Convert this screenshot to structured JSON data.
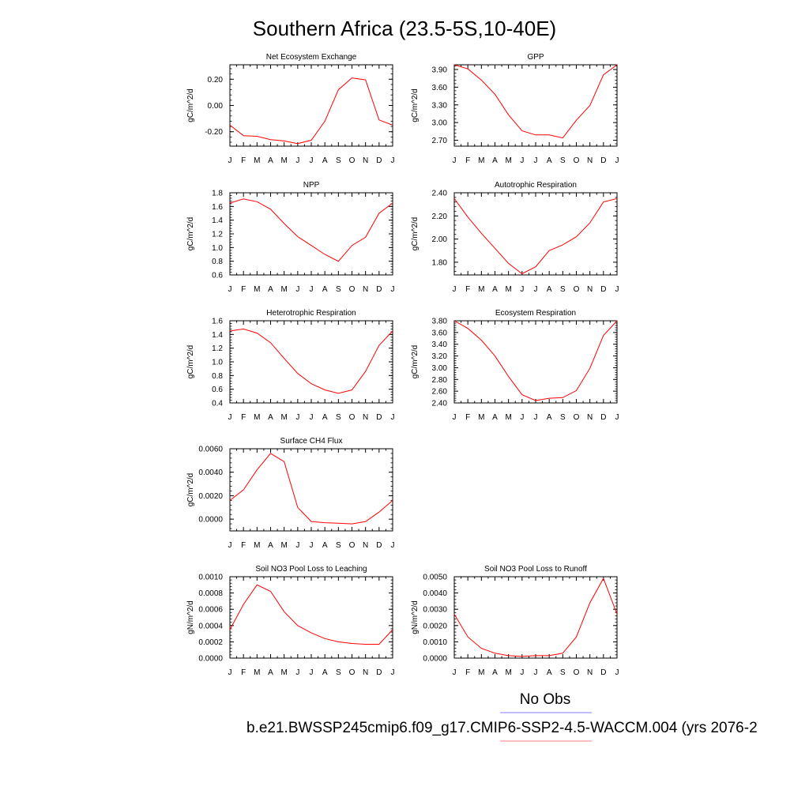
{
  "figure": {
    "title": "Southern Africa (23.5-5S,10-40E)",
    "legend": {
      "obs_label": "No Obs",
      "case_label": "b.e21.BWSSP245cmip6.f09_g17.CMIP6-SSP2-4.5-WACCM.004 (yrs 2076-2",
      "obs_color": "#7f7fff",
      "case_color": "#ff7f7f"
    },
    "line_color": "#ff0000"
  },
  "chart_data": [
    {
      "type": "line",
      "title": "Net Ecosystem Exchange",
      "ylabel": "gC/m^2/d",
      "categories": [
        "J",
        "F",
        "M",
        "A",
        "M",
        "J",
        "J",
        "A",
        "S",
        "O",
        "N",
        "D",
        "J"
      ],
      "ylim": [
        -0.31,
        0.31
      ],
      "yticks": [
        -0.2,
        0.0,
        0.2
      ],
      "ytick_labels": [
        "-0.20",
        "0.00",
        "0.20"
      ],
      "series": [
        {
          "values": [
            -0.15,
            -0.23,
            -0.235,
            -0.26,
            -0.27,
            -0.29,
            -0.265,
            -0.12,
            0.12,
            0.21,
            0.195,
            -0.11,
            -0.15
          ]
        }
      ]
    },
    {
      "type": "line",
      "title": "GPP",
      "ylabel": "gC/m^2/d",
      "categories": [
        "J",
        "F",
        "M",
        "A",
        "M",
        "J",
        "J",
        "A",
        "S",
        "O",
        "N",
        "D",
        "J"
      ],
      "ylim": [
        2.6,
        3.98
      ],
      "yticks": [
        2.7,
        3.0,
        3.3,
        3.6,
        3.9
      ],
      "ytick_labels": [
        "2.70",
        "3.00",
        "3.30",
        "3.60",
        "3.90"
      ],
      "series": [
        {
          "values": [
            3.98,
            3.91,
            3.72,
            3.48,
            3.13,
            2.86,
            2.79,
            2.79,
            2.74,
            3.04,
            3.29,
            3.81,
            3.98
          ]
        }
      ]
    },
    {
      "type": "line",
      "title": "NPP",
      "ylabel": "gC/m^2/d",
      "categories": [
        "J",
        "F",
        "M",
        "A",
        "M",
        "J",
        "J",
        "A",
        "S",
        "O",
        "N",
        "D",
        "J"
      ],
      "ylim": [
        0.6,
        1.8
      ],
      "yticks": [
        0.6,
        0.8,
        1.0,
        1.2,
        1.4,
        1.6,
        1.8
      ],
      "ytick_labels": [
        "0.6",
        "0.8",
        "1.0",
        "1.2",
        "1.4",
        "1.6",
        "1.8"
      ],
      "series": [
        {
          "values": [
            1.65,
            1.71,
            1.67,
            1.56,
            1.35,
            1.16,
            1.03,
            0.9,
            0.8,
            1.03,
            1.15,
            1.5,
            1.65
          ]
        }
      ]
    },
    {
      "type": "line",
      "title": "Autotrophic Respiration",
      "ylabel": "gC/m^2/d",
      "categories": [
        "J",
        "F",
        "M",
        "A",
        "M",
        "J",
        "J",
        "A",
        "S",
        "O",
        "N",
        "D",
        "J"
      ],
      "ylim": [
        1.69,
        2.4
      ],
      "yticks": [
        1.8,
        2.0,
        2.2,
        2.4
      ],
      "ytick_labels": [
        "1.80",
        "2.00",
        "2.20",
        "2.40"
      ],
      "series": [
        {
          "values": [
            2.35,
            2.19,
            2.05,
            1.92,
            1.79,
            1.7,
            1.76,
            1.9,
            1.95,
            2.02,
            2.14,
            2.32,
            2.35
          ]
        }
      ]
    },
    {
      "type": "line",
      "title": "Heterotrophic Respiration",
      "ylabel": "gC/m^2/d",
      "categories": [
        "J",
        "F",
        "M",
        "A",
        "M",
        "J",
        "J",
        "A",
        "S",
        "O",
        "N",
        "D",
        "J"
      ],
      "ylim": [
        0.4,
        1.6
      ],
      "yticks": [
        0.4,
        0.6,
        0.8,
        1.0,
        1.2,
        1.4,
        1.6
      ],
      "ytick_labels": [
        "0.4",
        "0.6",
        "0.8",
        "1.0",
        "1.2",
        "1.4",
        "1.6"
      ],
      "series": [
        {
          "values": [
            1.45,
            1.48,
            1.42,
            1.28,
            1.05,
            0.83,
            0.68,
            0.59,
            0.54,
            0.59,
            0.86,
            1.24,
            1.45
          ]
        }
      ]
    },
    {
      "type": "line",
      "title": "Ecosystem Respiration",
      "ylabel": "gC/m^2/d",
      "categories": [
        "J",
        "F",
        "M",
        "A",
        "M",
        "J",
        "J",
        "A",
        "S",
        "O",
        "N",
        "D",
        "J"
      ],
      "ylim": [
        2.4,
        3.8
      ],
      "yticks": [
        2.4,
        2.6,
        2.8,
        3.0,
        3.2,
        3.4,
        3.6,
        3.8
      ],
      "ytick_labels": [
        "2.40",
        "2.60",
        "2.80",
        "3.00",
        "3.20",
        "3.40",
        "3.60",
        "3.80"
      ],
      "series": [
        {
          "values": [
            3.8,
            3.67,
            3.47,
            3.2,
            2.85,
            2.54,
            2.44,
            2.48,
            2.49,
            2.61,
            2.99,
            3.55,
            3.8
          ]
        }
      ]
    },
    {
      "type": "line",
      "title": "Surface CH4 Flux",
      "ylabel": "gC/m^2/d",
      "categories": [
        "J",
        "F",
        "M",
        "A",
        "M",
        "J",
        "J",
        "A",
        "S",
        "O",
        "N",
        "D",
        "J"
      ],
      "ylim": [
        -0.001,
        0.006
      ],
      "yticks": [
        0.0,
        0.002,
        0.004,
        0.006
      ],
      "ytick_labels": [
        "0.0000",
        "0.0020",
        "0.0040",
        "0.0060"
      ],
      "series": [
        {
          "values": [
            0.0016,
            0.0025,
            0.0042,
            0.0056,
            0.0049,
            0.001,
            -0.0002,
            -0.0003,
            -0.00035,
            -0.0004,
            -0.0002,
            0.0006,
            0.0016
          ]
        }
      ]
    },
    {
      "type": "line",
      "title": "Soil NO3 Pool Loss to Leaching",
      "ylabel": "gN/m^2/d",
      "categories": [
        "J",
        "F",
        "M",
        "A",
        "M",
        "J",
        "J",
        "A",
        "S",
        "O",
        "N",
        "D",
        "J"
      ],
      "ylim": [
        0.0,
        0.001
      ],
      "yticks": [
        0.0,
        0.0002,
        0.0004,
        0.0006,
        0.0008,
        0.001
      ],
      "ytick_labels": [
        "0.0000",
        "0.0002",
        "0.0004",
        "0.0006",
        "0.0008",
        "0.0010"
      ],
      "series": [
        {
          "values": [
            0.00035,
            0.00066,
            0.0009,
            0.00082,
            0.00057,
            0.0004,
            0.00031,
            0.00024,
            0.0002,
            0.00018,
            0.00017,
            0.00017,
            0.00035
          ]
        }
      ]
    },
    {
      "type": "line",
      "title": "Soil NO3 Pool Loss to Runoff",
      "ylabel": "gN/m^2/d",
      "categories": [
        "J",
        "F",
        "M",
        "A",
        "M",
        "J",
        "J",
        "A",
        "S",
        "O",
        "N",
        "D",
        "J"
      ],
      "ylim": [
        0.0,
        0.005
      ],
      "yticks": [
        0.0,
        0.001,
        0.002,
        0.003,
        0.004,
        0.005
      ],
      "ytick_labels": [
        "0.0000",
        "0.0010",
        "0.0020",
        "0.0030",
        "0.0040",
        "0.0050"
      ],
      "series": [
        {
          "values": [
            0.0027,
            0.0013,
            0.0006,
            0.0003,
            0.00015,
            0.0001,
            0.00015,
            0.00015,
            0.0003,
            0.0013,
            0.0034,
            0.0049,
            0.0027
          ]
        }
      ]
    }
  ]
}
